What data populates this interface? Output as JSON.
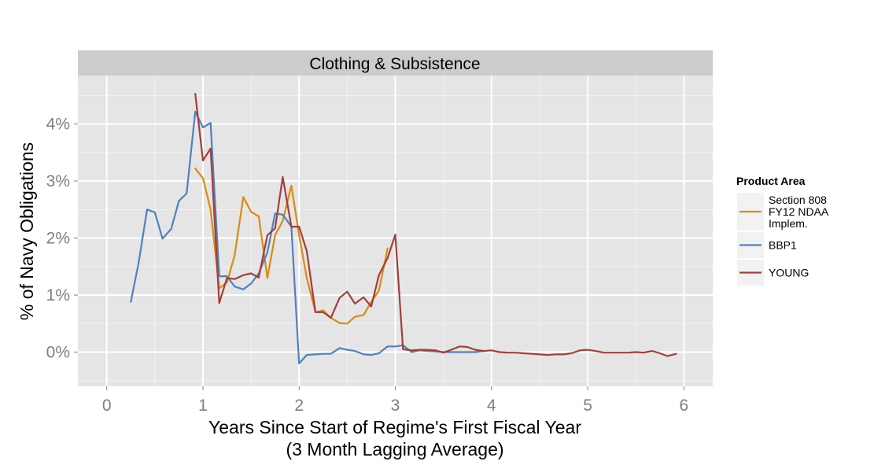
{
  "chart_data": {
    "type": "line",
    "title": "Clothing & Subsistence",
    "xlabel": "Years Since Start of Regime's First Fiscal Year",
    "xlabel_line2": "(3 Month Lagging Average)",
    "ylabel": "% of Navy Obligations",
    "xlim": [
      -0.3,
      6.3
    ],
    "ylim": [
      -0.6,
      4.85
    ],
    "x_ticks": [
      0,
      1,
      2,
      3,
      4,
      5,
      6
    ],
    "x_tick_labels": [
      "0",
      "1",
      "2",
      "3",
      "4",
      "5",
      "6"
    ],
    "y_ticks": [
      0,
      1,
      2,
      3,
      4
    ],
    "y_tick_labels": [
      "0%",
      "1%",
      "2%",
      "3%",
      "4%"
    ],
    "grid": true,
    "legend": {
      "title": "Product Area",
      "position": "right",
      "entries": [
        {
          "label_lines": [
            "Section 808",
            "FY12 NDAA",
            "Implem."
          ],
          "color": "#d98b14"
        },
        {
          "label_lines": [
            "BBP1"
          ],
          "color": "#4f81bd"
        },
        {
          "label_lines": [
            "YOUNG"
          ],
          "color": "#a43e3a"
        }
      ]
    },
    "series": [
      {
        "name": "Section 808 FY12 NDAA Implem.",
        "color": "#d98b14",
        "x": [
          0.92,
          1.0,
          1.08,
          1.17,
          1.25,
          1.33,
          1.42,
          1.5,
          1.58,
          1.67,
          1.75,
          1.83,
          1.92,
          2.0,
          2.08,
          2.17,
          2.25,
          2.33,
          2.42,
          2.5,
          2.58,
          2.67,
          2.75,
          2.83,
          2.92
        ],
        "y": [
          3.22,
          3.05,
          2.5,
          1.12,
          1.22,
          1.7,
          2.72,
          2.46,
          2.38,
          1.3,
          2.05,
          2.3,
          2.92,
          2.05,
          1.3,
          0.7,
          0.73,
          0.6,
          0.51,
          0.5,
          0.62,
          0.65,
          0.88,
          1.08,
          1.82
        ]
      },
      {
        "name": "BBP1",
        "color": "#4f81bd",
        "x": [
          0.25,
          0.33,
          0.42,
          0.5,
          0.58,
          0.67,
          0.75,
          0.83,
          0.92,
          1.0,
          1.08,
          1.17,
          1.25,
          1.33,
          1.42,
          1.5,
          1.58,
          1.67,
          1.75,
          1.83,
          1.92,
          2.0,
          2.08,
          2.17,
          2.25,
          2.33,
          2.42,
          2.5,
          2.58,
          2.67,
          2.75,
          2.83,
          2.92,
          3.0,
          3.08,
          3.17,
          3.25,
          3.33,
          3.42,
          3.5,
          3.58,
          3.67,
          3.75,
          3.83,
          3.92
        ],
        "y": [
          0.88,
          1.55,
          2.5,
          2.45,
          1.99,
          2.16,
          2.65,
          2.78,
          4.22,
          3.94,
          4.02,
          1.33,
          1.33,
          1.15,
          1.1,
          1.2,
          1.38,
          1.75,
          2.43,
          2.41,
          2.2,
          -0.2,
          -0.05,
          -0.04,
          -0.03,
          -0.03,
          0.07,
          0.04,
          0.02,
          -0.04,
          -0.05,
          -0.02,
          0.1,
          0.1,
          0.12,
          0.0,
          0.03,
          0.02,
          0.01,
          0.0,
          0.0,
          0.0,
          0.0,
          0.0,
          0.02
        ]
      },
      {
        "name": "YOUNG",
        "color": "#a43e3a",
        "x": [
          0.92,
          1.0,
          1.08,
          1.17,
          1.25,
          1.33,
          1.42,
          1.5,
          1.58,
          1.67,
          1.75,
          1.83,
          1.92,
          2.0,
          2.08,
          2.17,
          2.25,
          2.33,
          2.42,
          2.5,
          2.58,
          2.67,
          2.75,
          2.83,
          2.92,
          3.0,
          3.08,
          3.17,
          3.25,
          3.33,
          3.42,
          3.5,
          3.58,
          3.67,
          3.75,
          3.83,
          3.92,
          4.0,
          4.08,
          4.17,
          4.25,
          4.33,
          4.42,
          4.5,
          4.58,
          4.67,
          4.75,
          4.83,
          4.92,
          5.0,
          5.08,
          5.17,
          5.25,
          5.33,
          5.42,
          5.5,
          5.58,
          5.67,
          5.75,
          5.83,
          5.92
        ],
        "y": [
          4.53,
          3.36,
          3.57,
          0.86,
          1.3,
          1.28,
          1.35,
          1.38,
          1.31,
          2.05,
          2.17,
          3.07,
          2.2,
          2.2,
          1.77,
          0.7,
          0.7,
          0.6,
          0.95,
          1.06,
          0.85,
          0.96,
          0.8,
          1.35,
          1.65,
          2.06,
          0.05,
          0.03,
          0.04,
          0.04,
          0.03,
          -0.01,
          0.04,
          0.1,
          0.09,
          0.04,
          0.02,
          0.03,
          0.0,
          -0.01,
          -0.01,
          -0.02,
          -0.03,
          -0.04,
          -0.05,
          -0.04,
          -0.04,
          -0.02,
          0.03,
          0.04,
          0.02,
          -0.01,
          -0.01,
          -0.01,
          -0.01,
          0.0,
          -0.01,
          0.02,
          -0.02,
          -0.07,
          -0.03
        ]
      }
    ]
  }
}
